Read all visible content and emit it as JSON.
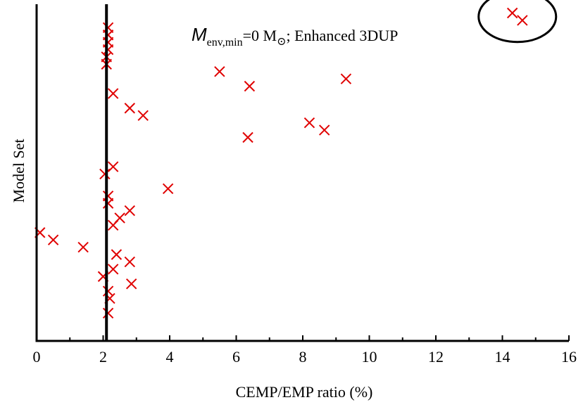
{
  "chart_data": {
    "type": "scatter",
    "title": "",
    "xlabel": "CEMP/EMP ratio (%)",
    "ylabel": "Model Set",
    "xlim": [
      0,
      16
    ],
    "ylim": [
      0,
      46
    ],
    "xticks": [
      "0",
      "2",
      "4",
      "6",
      "8",
      "10",
      "12",
      "14",
      "16"
    ],
    "reference_line_x": 2.1,
    "marker": "x",
    "marker_color": "#e00000",
    "annotation": {
      "symbol": "M",
      "subscript": "env,min",
      "equals": "=0 M",
      "sun_symbol": "⊙",
      "rest": "; Enhanced 3DUP"
    },
    "highlight_circle_around": [
      [
        14.3,
        44.8
      ],
      [
        14.6,
        43.8
      ]
    ],
    "points": [
      {
        "x": 14.3,
        "y": 44.8
      },
      {
        "x": 14.6,
        "y": 43.8
      },
      {
        "x": 2.15,
        "y": 42.8
      },
      {
        "x": 2.15,
        "y": 41.8
      },
      {
        "x": 2.15,
        "y": 40.8
      },
      {
        "x": 2.15,
        "y": 39.8
      },
      {
        "x": 2.1,
        "y": 38.8
      },
      {
        "x": 2.1,
        "y": 37.8
      },
      {
        "x": 5.5,
        "y": 36.8
      },
      {
        "x": 9.3,
        "y": 35.8
      },
      {
        "x": 6.4,
        "y": 34.8
      },
      {
        "x": 2.3,
        "y": 33.8
      },
      {
        "x": 2.8,
        "y": 31.8
      },
      {
        "x": 3.2,
        "y": 30.8
      },
      {
        "x": 8.2,
        "y": 29.8
      },
      {
        "x": 8.65,
        "y": 28.8
      },
      {
        "x": 6.35,
        "y": 27.8
      },
      {
        "x": 2.3,
        "y": 23.8
      },
      {
        "x": 2.05,
        "y": 22.8
      },
      {
        "x": 3.95,
        "y": 20.8
      },
      {
        "x": 2.15,
        "y": 19.8
      },
      {
        "x": 2.15,
        "y": 18.8
      },
      {
        "x": 2.8,
        "y": 17.8
      },
      {
        "x": 2.5,
        "y": 16.8
      },
      {
        "x": 2.3,
        "y": 15.8
      },
      {
        "x": 0.1,
        "y": 14.8
      },
      {
        "x": 0.5,
        "y": 13.8
      },
      {
        "x": 1.4,
        "y": 12.8
      },
      {
        "x": 2.4,
        "y": 11.8
      },
      {
        "x": 2.8,
        "y": 10.8
      },
      {
        "x": 2.3,
        "y": 9.8
      },
      {
        "x": 2.0,
        "y": 8.8
      },
      {
        "x": 2.85,
        "y": 7.8
      },
      {
        "x": 2.15,
        "y": 6.8
      },
      {
        "x": 2.2,
        "y": 5.8
      },
      {
        "x": 2.15,
        "y": 3.8
      }
    ]
  }
}
